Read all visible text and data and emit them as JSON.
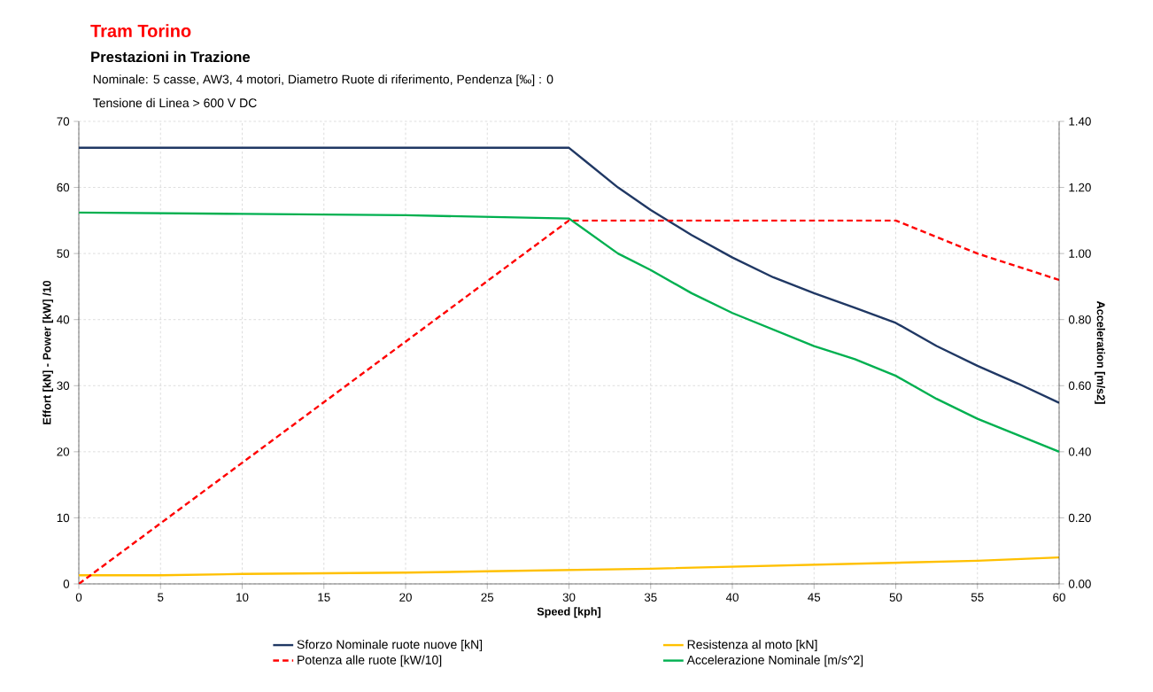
{
  "chart_data": {
    "type": "line",
    "title": "Tram Torino",
    "subtitle": "Prestazioni in Trazione",
    "annotations": [
      "Nominale:  5 casse, AW3, 4 motori, Diametro Ruote di riferimento, Pendenza [‰] : 0",
      "Tensione di Linea >   600  V DC"
    ],
    "xlabel": "Speed [kph]",
    "ylabel": "Effort [kN] - Power [kW] /10",
    "y2label": "Acceleration [m/s2]",
    "xlim": [
      0,
      60
    ],
    "xticks": [
      0,
      5,
      10,
      15,
      20,
      25,
      30,
      35,
      40,
      45,
      50,
      55,
      60
    ],
    "ylim": [
      0,
      70
    ],
    "yticks": [
      0,
      10,
      20,
      30,
      40,
      50,
      60,
      70
    ],
    "y2lim": [
      0,
      1.4
    ],
    "y2ticks": [
      {
        "value": 0,
        "label": "0.00"
      },
      {
        "value": 0.2,
        "label": "0.20"
      },
      {
        "value": 0.4,
        "label": "0.40"
      },
      {
        "value": 0.6,
        "label": "0.60"
      },
      {
        "value": 0.8,
        "label": "0.80"
      },
      {
        "value": 1.0,
        "label": "1.00"
      },
      {
        "value": 1.2,
        "label": "1.20"
      },
      {
        "value": 1.4,
        "label": "1.40"
      }
    ],
    "grid": true,
    "legend": "bottom",
    "marker": "none",
    "series": [
      {
        "name": "Sforzo Nominale ruote nuove [kN]",
        "color": "#203864",
        "line_style": "solid",
        "x": [
          0,
          30,
          31,
          33,
          35,
          37.5,
          40,
          42.5,
          45,
          47.5,
          50,
          52.5,
          55,
          57.5,
          60
        ],
        "values": [
          66,
          66,
          64,
          60,
          56.6,
          52.8,
          49.4,
          46.4,
          44,
          41.8,
          39.5,
          36,
          33,
          30.3,
          27.4
        ]
      },
      {
        "name": "Resistenza al moto [kN]",
        "color": "#ffc000",
        "line_style": "solid",
        "x": [
          0,
          5,
          10,
          15,
          20,
          25,
          30,
          35,
          40,
          45,
          50,
          55,
          60
        ],
        "values": [
          1.3,
          1.3,
          1.5,
          1.6,
          1.7,
          1.9,
          2.1,
          2.3,
          2.6,
          2.9,
          3.2,
          3.5,
          4.0
        ]
      },
      {
        "name": "Potenza alle ruote [kW/10]",
        "color": "#ff0000",
        "line_style": "dashed",
        "x": [
          0,
          30,
          50,
          53,
          55,
          60
        ],
        "values": [
          0,
          55,
          55,
          52,
          50,
          46
        ]
      },
      {
        "name": "Accelerazione Nominale [m/s^2]",
        "color": "#00b050",
        "line_style": "solid",
        "axis": "y2",
        "x": [
          0,
          10,
          20,
          30,
          33,
          35,
          37.5,
          40,
          42.5,
          45,
          47.5,
          50,
          52.5,
          55,
          57.5,
          60
        ],
        "values": [
          1.124,
          1.12,
          1.116,
          1.106,
          1.0,
          0.95,
          0.88,
          0.82,
          0.77,
          0.72,
          0.68,
          0.63,
          0.56,
          0.5,
          0.45,
          0.4
        ]
      }
    ]
  }
}
